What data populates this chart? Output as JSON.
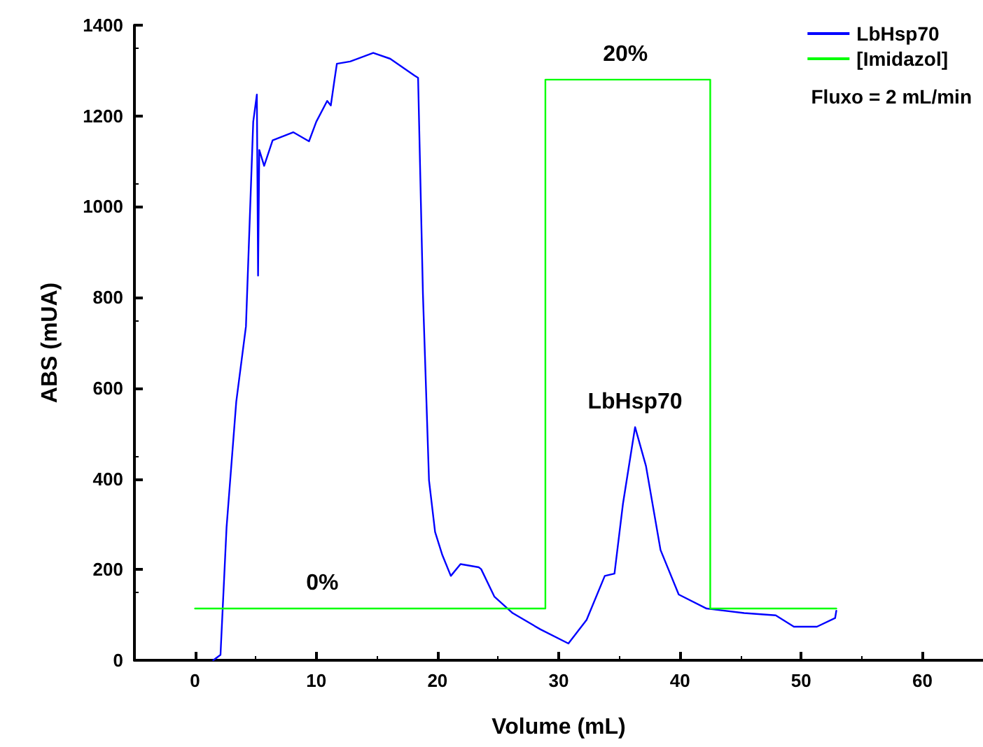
{
  "chart_data": {
    "type": "line",
    "xlabel": "Volume (mL)",
    "ylabel": "ABS (mUA)",
    "xlim": [
      -5,
      65
    ],
    "xticks": [
      0,
      10,
      20,
      30,
      40,
      50,
      60
    ],
    "ylim": [
      0,
      1400
    ],
    "yticks": [
      0,
      200,
      400,
      600,
      800,
      1000,
      1200,
      1400
    ],
    "grid": false,
    "legend": "top right",
    "marker": "none",
    "line_style": "solid",
    "series": [
      {
        "name": "LbHsp70",
        "color": "#0000ff",
        "x": [
          1.5,
          2.1,
          2.6,
          3.4,
          4.2,
          4.8,
          5.1,
          5.2,
          5.3,
          5.7,
          6.4,
          8.1,
          9.4,
          10.0,
          10.9,
          11.2,
          11.5,
          11.7,
          12.8,
          14.7,
          16.1,
          18.1,
          18.4,
          18.8,
          19.3,
          19.8,
          20.4,
          21.1,
          21.9,
          23.4,
          23.6,
          24.7,
          26.2,
          28.5,
          30.8,
          32.3,
          33.8,
          34.6,
          35.3,
          36.3,
          37.2,
          38.4,
          39.9,
          42.2,
          45.3,
          47.9,
          49.4,
          51.3,
          52.8,
          52.9
        ],
        "values": [
          0,
          12,
          293,
          570,
          736,
          1187,
          1247,
          848,
          1125,
          1090,
          1146,
          1164,
          1144,
          1187,
          1233,
          1223,
          1279,
          1315,
          1320,
          1339,
          1326,
          1289,
          1284,
          807,
          397,
          283,
          232,
          186,
          212,
          205,
          201,
          140,
          104,
          68,
          37,
          89,
          186,
          191,
          345,
          514,
          428,
          243,
          145,
          114,
          104,
          99,
          74,
          74,
          93,
          109
        ]
      },
      {
        "name": "[Imidazol]",
        "color": "#00ff00",
        "x": [
          0,
          28.9,
          28.9,
          42.5,
          42.5,
          52.9
        ],
        "values": [
          114,
          114,
          1280,
          1280,
          114,
          114
        ]
      }
    ],
    "annotations": [
      "Fluxo = 2 mL/min",
      {
        "text": "20%",
        "x": 35.5,
        "y": 1280
      },
      {
        "text": "0%",
        "x": 10.5,
        "y": 114
      },
      {
        "text": "LbHsp70",
        "x": 36.3,
        "y": 514
      }
    ]
  }
}
